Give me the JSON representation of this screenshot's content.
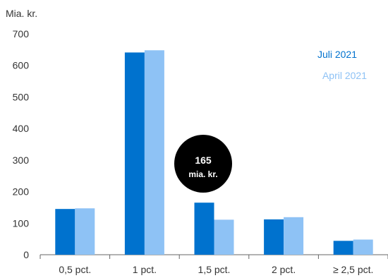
{
  "chart_data": {
    "type": "bar",
    "unit_label": "Mia. kr.",
    "categories": [
      "0,5 pct.",
      "1 pct.",
      "1,5 pct.",
      "2 pct.",
      "≥ 2,5 pct."
    ],
    "series": [
      {
        "name": "Juli 2021",
        "color": "#0072ce",
        "values": [
          145,
          641,
          165,
          112,
          44
        ]
      },
      {
        "name": "April 2021",
        "color": "#8ec2f5",
        "values": [
          147,
          648,
          111,
          119,
          48
        ]
      }
    ],
    "ylim": [
      0,
      700
    ],
    "yticks": [
      "0",
      "100",
      "200",
      "300",
      "400",
      "500",
      "600",
      "700"
    ],
    "grid": false,
    "legend_position": "top-right",
    "annotation": {
      "value": "165",
      "unit": "mia. kr.",
      "category": "1,5 pct.",
      "color": "#000000"
    }
  }
}
